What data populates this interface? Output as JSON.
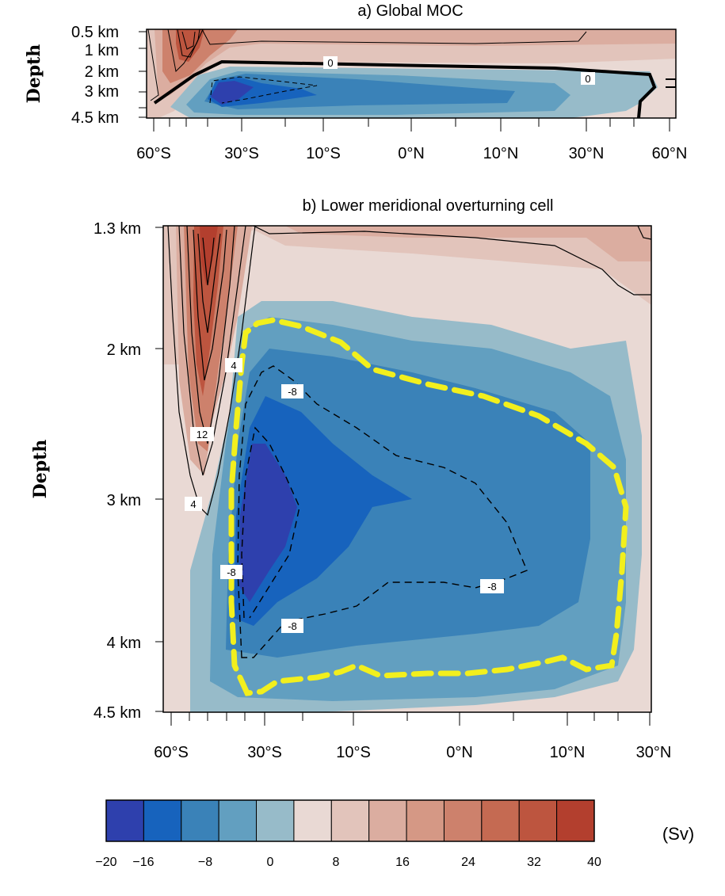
{
  "chart_data": [
    {
      "id": "a",
      "type": "heatmap",
      "title": "a) Global MOC",
      "ylabel": "Depth",
      "xlabel": "",
      "y_ticks": [
        "0.5 km",
        "1 km",
        "2 km",
        "3 km",
        "4.5 km"
      ],
      "x_ticks": [
        "60°S",
        "30°S",
        "10°S",
        "0°N",
        "10°N",
        "30°N",
        "60°N"
      ],
      "contour_labels": [
        "0",
        "0"
      ],
      "units": "Sv"
    },
    {
      "id": "b",
      "type": "heatmap",
      "title": "b) Lower meridional overturning cell",
      "ylabel": "Depth",
      "xlabel": "",
      "y_ticks": [
        "1.3 km",
        "2 km",
        "3 km",
        "4 km",
        "4.5 km"
      ],
      "x_ticks": [
        "60°S",
        "30°S",
        "10°S",
        "0°N",
        "10°N",
        "30°N"
      ],
      "contour_labels": [
        "4",
        "12",
        "4",
        "-8",
        "-8",
        "-8",
        "-8"
      ],
      "highlight": "yellow dashed contour outlining the lower cell",
      "units": "Sv"
    }
  ],
  "colorbar": {
    "ticks": [
      "−20",
      "−16",
      "−8",
      "0",
      "8",
      "16",
      "24",
      "32",
      "40"
    ],
    "colors": [
      "#2e40ad",
      "#1763bd",
      "#3a82b8",
      "#629fc0",
      "#97bbc9",
      "#e9d9d4",
      "#e2c4bb",
      "#dbada0",
      "#d59885",
      "#cd816c",
      "#c56a52",
      "#bd553f",
      "#b33f2e"
    ],
    "units": "(Sv)"
  }
}
